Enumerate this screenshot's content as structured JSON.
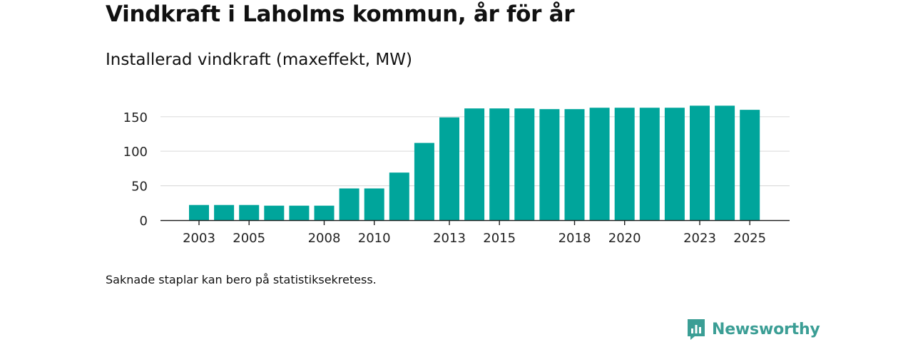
{
  "title": "Vindkraft i Laholms kommun, år för år",
  "subtitle": "Installerad vindkraft (maxeffekt, MW)",
  "note": "Saknade staplar kan bero på statistiksekretess.",
  "brand": {
    "name": "Newsworthy",
    "icon": "newsworthy-logo-icon",
    "color": "#3b9e95"
  },
  "colors": {
    "bar": "#00a59b",
    "grid": "#dddddd",
    "axis": "#222222"
  },
  "chart_data": {
    "type": "bar",
    "title": "Installerad vindkraft (maxeffekt, MW)",
    "xlabel": "",
    "ylabel": "",
    "grid": true,
    "categories": [
      2003,
      2004,
      2005,
      2006,
      2007,
      2008,
      2009,
      2010,
      2011,
      2012,
      2013,
      2014,
      2015,
      2016,
      2017,
      2018,
      2019,
      2020,
      2021,
      2022,
      2023,
      2024,
      2025
    ],
    "values": [
      22,
      22,
      22,
      21,
      21,
      21,
      46,
      46,
      69,
      112,
      149,
      162,
      162,
      162,
      161,
      161,
      163,
      163,
      163,
      163,
      166,
      166,
      160
    ],
    "x_tick_labels": [
      "2003",
      "2005",
      "2008",
      "2010",
      "2013",
      "2015",
      "2018",
      "2020",
      "2023",
      "2025"
    ],
    "y_ticks": [
      0,
      50,
      100,
      150
    ],
    "ylim": [
      0,
      175
    ]
  }
}
